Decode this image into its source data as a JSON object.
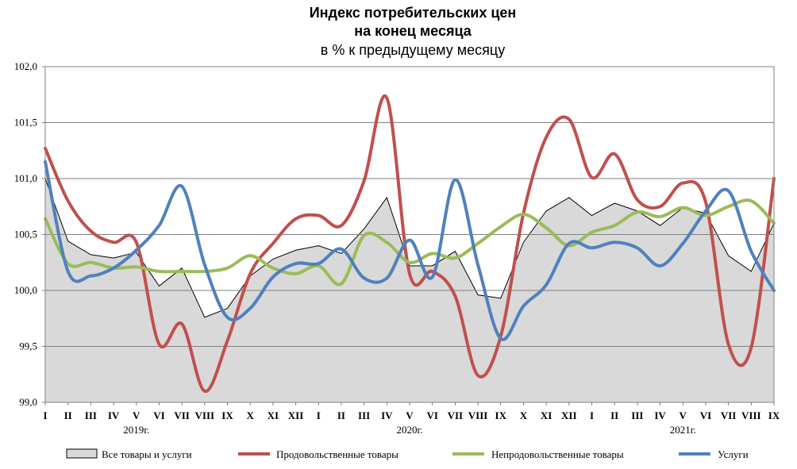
{
  "chart_data": {
    "type": "line",
    "title": [
      "Индекс потребительских цен",
      "на конец месяца",
      "в % к предыдущему месяцу"
    ],
    "ylim": [
      99.0,
      102.0
    ],
    "yticks": [
      "99,0",
      "99,5",
      "100,0",
      "100,5",
      "101,0",
      "101,5",
      "102,0"
    ],
    "ytick_values": [
      99.0,
      99.5,
      100.0,
      100.5,
      101.0,
      101.5,
      102.0
    ],
    "categories": [
      "I",
      "II",
      "III",
      "IV",
      "V",
      "VI",
      "VII",
      "VIII",
      "IX",
      "X",
      "XI",
      "XII",
      "I",
      "II",
      "III",
      "IV",
      "V",
      "VI",
      "VII",
      "VIII",
      "IX",
      "X",
      "XI",
      "XII",
      "I",
      "II",
      "III",
      "IV",
      "V",
      "VI",
      "VII",
      "VIII",
      "IX"
    ],
    "year_labels": [
      {
        "label": "2019г.",
        "at_index": 4
      },
      {
        "label": "2020г.",
        "at_index": 16
      },
      {
        "label": "2021г.",
        "at_index": 28
      }
    ],
    "grid": "horizontal",
    "legend_position": "bottom",
    "series": [
      {
        "name": "Все товары и услуги",
        "style": "area",
        "fill": "#d9d9d9",
        "stroke": "#000000",
        "values": [
          101.0,
          100.44,
          100.32,
          100.29,
          100.34,
          100.04,
          100.2,
          99.76,
          99.84,
          100.13,
          100.28,
          100.36,
          100.4,
          100.33,
          100.55,
          100.83,
          100.22,
          100.22,
          100.35,
          99.96,
          99.93,
          100.43,
          100.71,
          100.83,
          100.67,
          100.78,
          100.71,
          100.58,
          100.74,
          100.69,
          100.31,
          100.17,
          100.6
        ]
      },
      {
        "name": "Продовольственные товары",
        "style": "line",
        "color": "#c0504d",
        "values": [
          101.27,
          100.8,
          100.53,
          100.43,
          100.43,
          99.52,
          99.7,
          99.1,
          99.55,
          100.15,
          100.42,
          100.64,
          100.67,
          100.58,
          100.98,
          101.72,
          100.15,
          100.17,
          99.95,
          99.24,
          99.59,
          100.69,
          101.37,
          101.53,
          101.01,
          101.22,
          100.81,
          100.75,
          100.96,
          100.79,
          99.52,
          99.49,
          101.0
        ]
      },
      {
        "name": "Непродовольственные товары",
        "style": "line",
        "color": "#9bbb59",
        "values": [
          100.64,
          100.24,
          100.25,
          100.2,
          100.21,
          100.17,
          100.17,
          100.17,
          100.2,
          100.31,
          100.2,
          100.15,
          100.22,
          100.06,
          100.49,
          100.43,
          100.25,
          100.33,
          100.29,
          100.42,
          100.57,
          100.68,
          100.56,
          100.4,
          100.52,
          100.58,
          100.7,
          100.66,
          100.74,
          100.67,
          100.75,
          100.8,
          100.6
        ]
      },
      {
        "name": "Услуги",
        "style": "line",
        "color": "#4f81bd",
        "values": [
          101.15,
          100.17,
          100.13,
          100.2,
          100.36,
          100.58,
          100.93,
          100.23,
          99.76,
          99.84,
          100.12,
          100.24,
          100.24,
          100.37,
          100.11,
          100.11,
          100.45,
          100.12,
          100.99,
          100.23,
          99.57,
          99.86,
          100.05,
          100.42,
          100.38,
          100.43,
          100.38,
          100.22,
          100.42,
          100.71,
          100.89,
          100.35,
          100.0
        ]
      }
    ]
  }
}
